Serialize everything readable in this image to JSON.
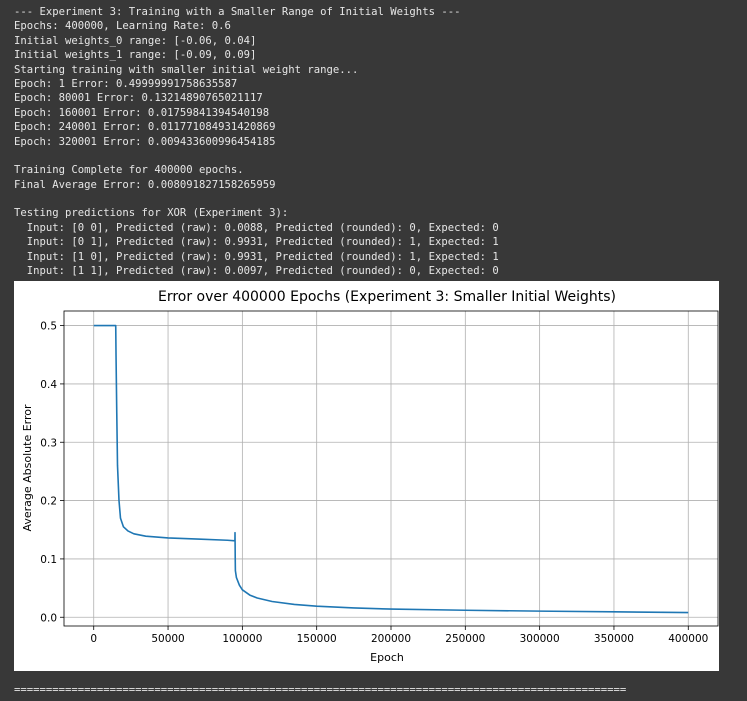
{
  "output_lines": [
    "--- Experiment 3: Training with a Smaller Range of Initial Weights ---",
    "Epochs: 400000, Learning Rate: 0.6",
    "Initial weights_0 range: [-0.06, 0.04]",
    "Initial weights_1 range: [-0.09, 0.09]",
    "Starting training with smaller initial weight range...",
    "Epoch: 1 Error: 0.49999991758635587",
    "Epoch: 80001 Error: 0.13214890765021117",
    "Epoch: 160001 Error: 0.01759841394540198",
    "Epoch: 240001 Error: 0.011771084931420869",
    "Epoch: 320001 Error: 0.009433600996454185",
    "",
    "Training Complete for 400000 epochs.",
    "Final Average Error: 0.008091827158265959",
    "",
    "Testing predictions for XOR (Experiment 3):",
    "  Input: [0 0], Predicted (raw): 0.0088, Predicted (rounded): 0, Expected: 0",
    "  Input: [0 1], Predicted (raw): 0.9931, Predicted (rounded): 1, Expected: 1",
    "  Input: [1 0], Predicted (raw): 0.9931, Predicted (rounded): 1, Expected: 1",
    "  Input: [1 1], Predicted (raw): 0.0097, Predicted (rounded): 0, Expected: 0"
  ],
  "separator": "================================================================================================",
  "colors": {
    "line": "#1f77b4",
    "grid": "#b0b0b0",
    "background": "#383838",
    "text": "#e6e6e6"
  },
  "chart_data": {
    "type": "line",
    "title": "Error over 400000 Epochs (Experiment 3: Smaller Initial Weights)",
    "xlabel": "Epoch",
    "ylabel": "Average Absolute Error",
    "xlim": [
      -20000,
      420000
    ],
    "ylim": [
      -0.015,
      0.525
    ],
    "xticks": [
      0,
      50000,
      100000,
      150000,
      200000,
      250000,
      300000,
      350000,
      400000
    ],
    "xtick_labels": [
      "0",
      "50000",
      "100000",
      "150000",
      "200000",
      "250000",
      "300000",
      "350000",
      "400000"
    ],
    "yticks": [
      0.0,
      0.1,
      0.2,
      0.3,
      0.4,
      0.5
    ],
    "ytick_labels": [
      "0.0",
      "0.1",
      "0.2",
      "0.3",
      "0.4",
      "0.5"
    ],
    "grid": true,
    "series": [
      {
        "x": [
          0,
          14800,
          15000,
          15500,
          16000,
          17000,
          18000,
          20000,
          23000,
          27000,
          35000,
          50000,
          70000,
          90000,
          95000,
          95050,
          95200,
          95300,
          96000,
          98000,
          100000,
          105000,
          110000,
          120000,
          135000,
          150000,
          175000,
          200000,
          250000,
          300000,
          350000,
          400000
        ],
        "y": [
          0.5,
          0.5,
          0.45,
          0.35,
          0.26,
          0.2,
          0.17,
          0.155,
          0.148,
          0.143,
          0.139,
          0.136,
          0.134,
          0.132,
          0.131,
          0.145,
          0.1,
          0.08,
          0.068,
          0.055,
          0.047,
          0.038,
          0.033,
          0.027,
          0.022,
          0.019,
          0.016,
          0.014,
          0.012,
          0.0105,
          0.0093,
          0.0081
        ]
      }
    ]
  }
}
